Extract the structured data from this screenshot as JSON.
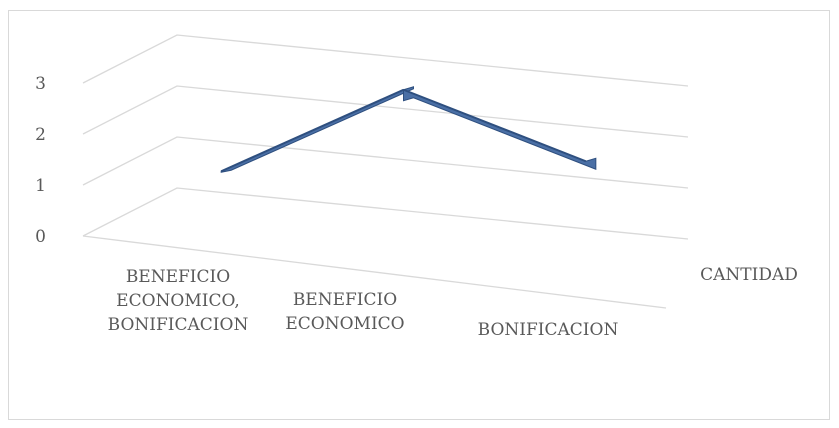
{
  "chart_data": {
    "type": "line",
    "style": "3d",
    "categories": [
      [
        "BENEFICIO",
        "ECONOMICO,",
        "BONIFICACION"
      ],
      [
        "BENEFICIO",
        "ECONOMICO"
      ],
      [
        "BONIFICACION"
      ]
    ],
    "series": [
      {
        "name": "CANTIDAD",
        "values": [
          1,
          3,
          2
        ],
        "color": "#4a6fa5"
      }
    ],
    "y_ticks": [
      "0",
      "1",
      "2",
      "3"
    ],
    "ylim": [
      0,
      3
    ],
    "grid": true,
    "colors": {
      "line": "#4a6fa5",
      "line_dark": "#2e4f7f",
      "grid": "#d9d9d9",
      "text": "#595959"
    }
  }
}
